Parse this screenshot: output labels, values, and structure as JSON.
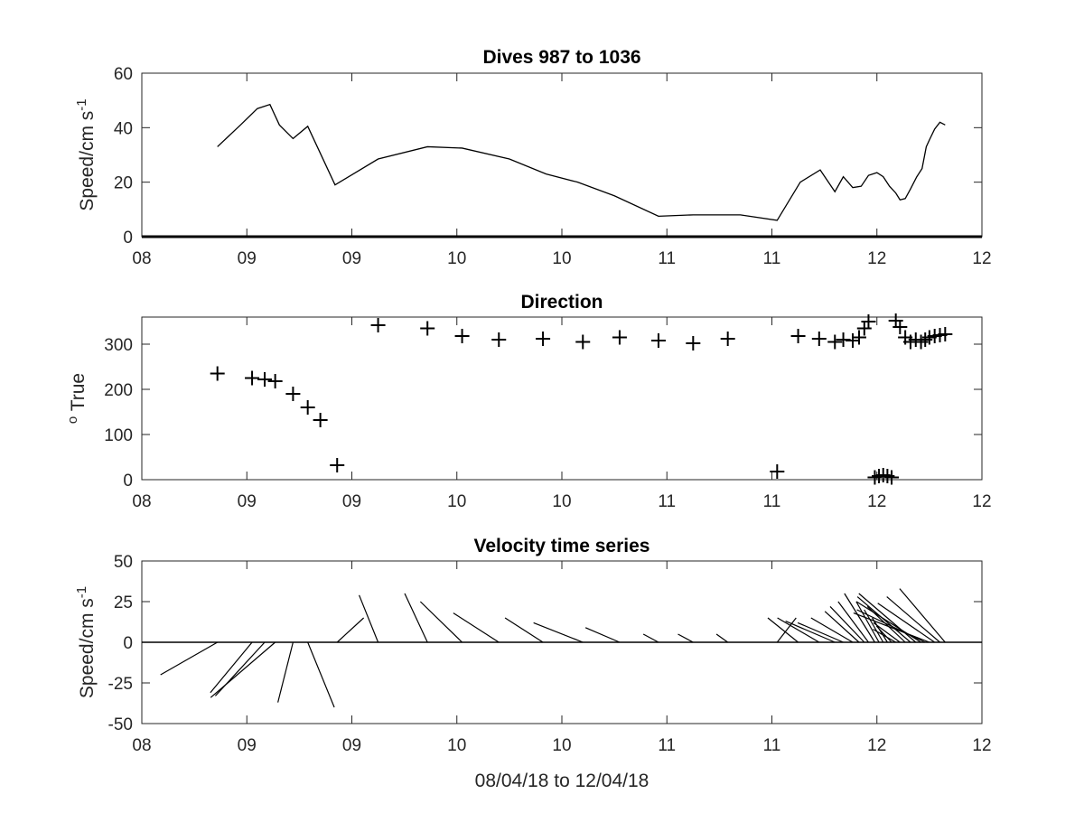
{
  "chart_data": [
    {
      "type": "line",
      "title": "Dives 987 to 1036",
      "xlabel": "",
      "ylabel": "Speed/cm s",
      "ylabel_sup": "-1",
      "x_tick_labels": [
        "08",
        "09",
        "09",
        "10",
        "10",
        "11",
        "11",
        "12",
        "12"
      ],
      "xlim": [
        0,
        8
      ],
      "ylim": [
        0,
        60
      ],
      "y_ticks": [
        0,
        20,
        40,
        60
      ],
      "grid": false,
      "series": [
        {
          "x": [
            0.72,
            0.94,
            1.1,
            1.22,
            1.31,
            1.44,
            1.58,
            1.84,
            2.25,
            2.72,
            3.05,
            3.5,
            3.85,
            4.15,
            4.5,
            4.92,
            5.25,
            5.7,
            6.05,
            6.27,
            6.46,
            6.6,
            6.68,
            6.77,
            6.85,
            6.92,
            7.0,
            7.06,
            7.12,
            7.18,
            7.22,
            7.27,
            7.32,
            7.38,
            7.43,
            7.47,
            7.5,
            7.55,
            7.6,
            7.65
          ],
          "y": [
            33,
            41,
            47,
            48.5,
            41,
            36,
            40.5,
            19,
            28.5,
            33,
            32.5,
            28.5,
            23,
            20,
            15,
            7.5,
            8,
            8,
            6,
            20,
            24.5,
            16.5,
            22,
            18,
            18.5,
            22.5,
            23.5,
            22,
            18.5,
            16,
            13.5,
            14,
            17.5,
            22,
            25,
            33,
            35.5,
            39.5,
            42,
            41
          ]
        }
      ]
    },
    {
      "type": "scatter",
      "title": "Direction",
      "xlabel": "",
      "ylabel": "True",
      "ylabel_sup": "o",
      "x_tick_labels": [
        "08",
        "09",
        "09",
        "10",
        "10",
        "11",
        "11",
        "12",
        "12"
      ],
      "xlim": [
        0,
        8
      ],
      "ylim": [
        0,
        360
      ],
      "y_ticks": [
        0,
        100,
        200,
        300
      ],
      "grid": false,
      "series": [
        {
          "x": [
            0.72,
            1.05,
            1.17,
            1.27,
            1.44,
            1.58,
            1.7,
            1.86,
            2.25,
            2.72,
            3.05,
            3.4,
            3.82,
            4.2,
            4.55,
            4.92,
            5.25,
            5.58,
            6.05,
            6.25,
            6.45,
            6.6,
            6.68,
            6.77,
            6.83,
            6.88,
            6.92,
            6.98,
            7.02,
            7.06,
            7.1,
            7.14,
            7.18,
            7.22,
            7.27,
            7.32,
            7.37,
            7.42,
            7.46,
            7.5,
            7.55,
            7.6,
            7.65
          ],
          "y": [
            235,
            225,
            222,
            218,
            190,
            160,
            132,
            32,
            342,
            335,
            318,
            310,
            312,
            305,
            315,
            308,
            302,
            312,
            18,
            318,
            312,
            305,
            310,
            308,
            315,
            335,
            350,
            5,
            8,
            10,
            8,
            5,
            352,
            338,
            315,
            305,
            310,
            305,
            310,
            315,
            318,
            320,
            322
          ]
        }
      ]
    },
    {
      "type": "line",
      "subtype": "stick",
      "title": "Velocity time series",
      "xlabel": "08/04/18 to 12/04/18",
      "ylabel": "Speed/cm s",
      "ylabel_sup": "-1",
      "x_tick_labels": [
        "08",
        "09",
        "09",
        "10",
        "10",
        "11",
        "11",
        "12",
        "12"
      ],
      "xlim": [
        0,
        8
      ],
      "ylim": [
        -50,
        50
      ],
      "y_ticks": [
        50,
        25,
        0,
        -25,
        -50
      ],
      "y_tick_labels": [
        "50",
        "25",
        "0",
        "-25",
        "-50"
      ],
      "grid": false,
      "series": [
        {
          "x": [
            0.72,
            1.05,
            1.17,
            1.27,
            1.44,
            1.58,
            1.86,
            2.25,
            2.72,
            3.05,
            3.4,
            3.82,
            4.2,
            4.55,
            4.92,
            5.25,
            5.58,
            6.05,
            6.25,
            6.45,
            6.6,
            6.68,
            6.77,
            6.83,
            6.88,
            6.92,
            6.98,
            7.02,
            7.06,
            7.1,
            7.14,
            7.18,
            7.22,
            7.27,
            7.32,
            7.37,
            7.42,
            7.46,
            7.5,
            7.55,
            7.6,
            7.65
          ],
          "u": [
            -15,
            -11,
            -13,
            -17,
            -4,
            7,
            7,
            -5,
            -6,
            -11,
            -12,
            -10,
            -13,
            -9,
            -4,
            -4,
            -3,
            5,
            -8,
            -11,
            -13,
            -12,
            -11,
            -9,
            -9,
            -8,
            -8,
            -6,
            -5,
            -4,
            -4,
            -6,
            -7,
            -10,
            -14,
            -15,
            -17,
            -18,
            -20,
            -15,
            -14,
            -12
          ],
          "v": [
            -20,
            -31,
            -33,
            -34,
            -37,
            -40,
            15,
            29,
            30,
            25,
            18,
            15,
            12,
            9,
            5,
            5,
            5,
            15,
            15,
            15,
            13,
            12,
            15,
            19,
            22,
            25,
            30,
            25,
            20,
            15,
            10,
            8,
            12,
            22,
            28,
            30,
            25,
            20,
            18,
            24,
            28,
            33
          ]
        }
      ]
    }
  ]
}
